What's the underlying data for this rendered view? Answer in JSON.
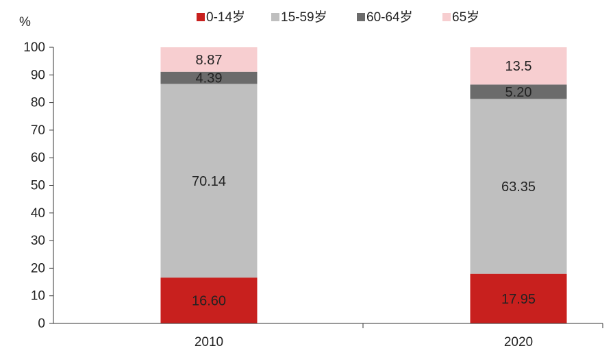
{
  "chart_data": {
    "type": "bar",
    "stacked": true,
    "ylabel": "%",
    "ylim": [
      0,
      100
    ],
    "yticks": [
      0,
      10,
      20,
      30,
      40,
      50,
      60,
      70,
      80,
      90,
      100
    ],
    "categories": [
      "2010",
      "2020"
    ],
    "legend_position": "top",
    "series": [
      {
        "name": "0-14岁",
        "color": "#c8201e",
        "values": [
          16.6,
          17.95
        ],
        "labels": [
          "16.60",
          "17.95"
        ]
      },
      {
        "name": "15-59岁",
        "color": "#bfbfbf",
        "values": [
          70.14,
          63.35
        ],
        "labels": [
          "70.14",
          "63.35"
        ]
      },
      {
        "name": "60-64岁",
        "color": "#6b6b6b",
        "values": [
          4.39,
          5.2
        ],
        "labels": [
          "4.39",
          "5.20"
        ]
      },
      {
        "name": "65岁",
        "color": "#f7ced0",
        "values": [
          8.87,
          13.5
        ],
        "labels": [
          "8.87",
          "13.5"
        ]
      }
    ]
  }
}
